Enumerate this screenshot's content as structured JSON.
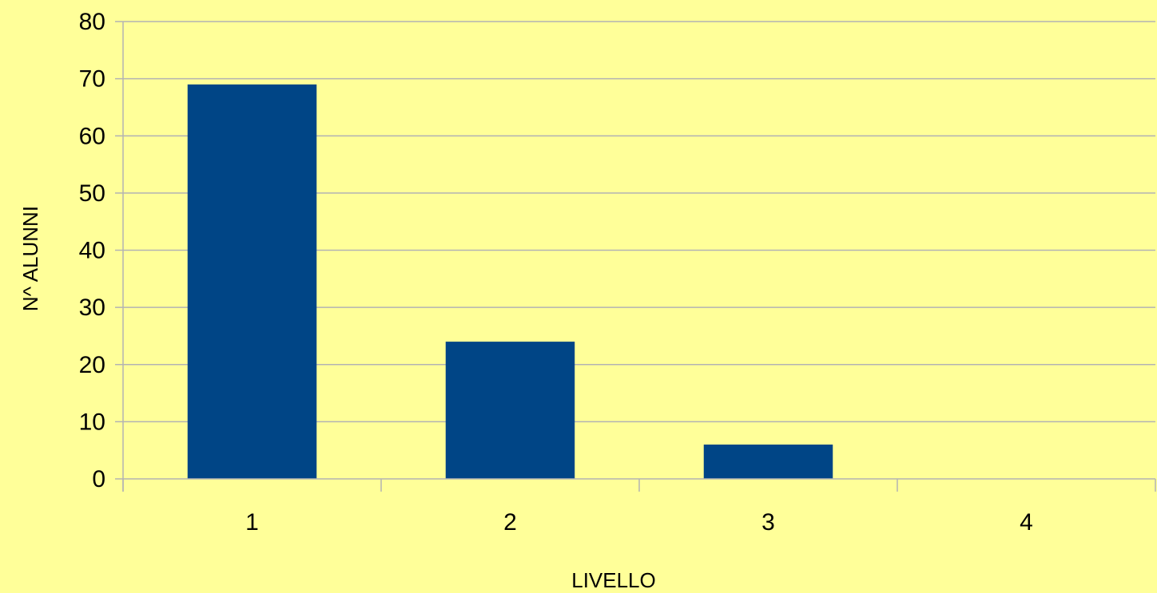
{
  "chart_data": {
    "type": "bar",
    "categories": [
      "1",
      "2",
      "3",
      "4"
    ],
    "values": [
      69,
      24,
      6,
      0
    ],
    "title": "",
    "xlabel": "LIVELLO",
    "ylabel": "N^ ALUNNI",
    "ylim": [
      0,
      80
    ],
    "yticks": [
      "0",
      "10",
      "20",
      "30",
      "40",
      "50",
      "60",
      "70",
      "80"
    ],
    "grid": true,
    "legend": "none",
    "colors": {
      "background": "#ffff99",
      "bar": "#004586",
      "grid": "#b3b3b3",
      "axis": "#b3b3b3"
    }
  }
}
